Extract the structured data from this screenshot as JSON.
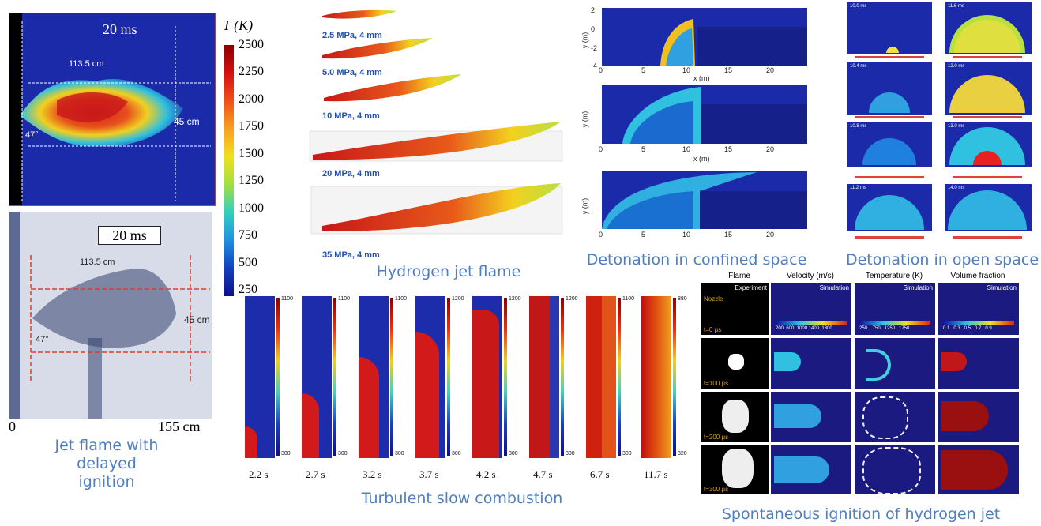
{
  "jet_delayed": {
    "sim_time": "20 ms",
    "sim_dist": "113.5 cm",
    "sim_angle": "47°",
    "sim_width": "45 cm",
    "cb_title": "T (K)",
    "cb_ticks": [
      "2500",
      "2250",
      "2000",
      "1750",
      "1500",
      "1250",
      "1000",
      "750",
      "500",
      "250"
    ],
    "exp_time": "20 ms",
    "exp_dist": "113.5 cm",
    "exp_angle": "47°",
    "exp_width": "45 cm",
    "axis_start": "0",
    "axis_end": "155 cm",
    "caption": "Jet flame with delayed ignition"
  },
  "hydrogen_jet": {
    "labels": [
      "2.5 MPa, 4 mm",
      "5.0 MPa, 4 mm",
      "10 MPa, 4 mm",
      "20 MPa, 4 mm",
      "35 MPa, 4 mm"
    ],
    "caption": "Hydrogen jet flame"
  },
  "confined": {
    "ylabel": "y (m)",
    "xlabel": "x (m)",
    "yticks": [
      "2",
      "0",
      "-2",
      "-4"
    ],
    "xticks": [
      "0",
      "5",
      "10",
      "15",
      "20"
    ],
    "caption": "Detonation in confined space"
  },
  "open_space": {
    "times_left": [
      "10.0 ms",
      "10.4 ms",
      "10.8 ms",
      "11.2 ms"
    ],
    "times_right": [
      "11.6 ms",
      "12.0 ms",
      "13.0 ms",
      "14.0 ms"
    ],
    "caption": "Detonation in open space"
  },
  "slow_combustion": {
    "frames": [
      {
        "time": "2.2 s",
        "ticks": [
          "1100",
          "1000",
          "900",
          "800",
          "700",
          "600",
          "500",
          "400",
          "300"
        ],
        "fill": 0.12
      },
      {
        "time": "2.7 s",
        "ticks": [
          "1100",
          "1000",
          "900",
          "800",
          "700",
          "600",
          "500",
          "400",
          "300"
        ],
        "fill": 0.38
      },
      {
        "time": "3.2 s",
        "ticks": [
          "1100",
          "1000",
          "900",
          "800",
          "700",
          "600",
          "500",
          "400",
          "300"
        ],
        "fill": 0.62
      },
      {
        "time": "3.7 s",
        "ticks": [
          "1200",
          "1100",
          "1000",
          "900",
          "800",
          "700",
          "600",
          "500",
          "400",
          "300"
        ],
        "fill": 0.78
      },
      {
        "time": "4.2 s",
        "ticks": [
          "1200",
          "1100",
          "1000",
          "900",
          "800",
          "700",
          "600",
          "500",
          "400",
          "300"
        ],
        "fill": 0.92
      },
      {
        "time": "4.7 s",
        "ticks": [
          "1200",
          "1100",
          "1000",
          "900",
          "800",
          "700",
          "600",
          "500",
          "400",
          "300"
        ],
        "fill": 0.97
      },
      {
        "time": "6.7 s",
        "ticks": [
          "1100",
          "1000",
          "900",
          "800",
          "700",
          "600",
          "500",
          "400",
          "300"
        ],
        "fill": 1.0
      },
      {
        "time": "11.7 s",
        "ticks": [
          "880",
          "800",
          "720",
          "640",
          "560",
          "480",
          "400",
          "320"
        ],
        "fill": 1.0
      }
    ],
    "caption": "Turbulent slow combustion"
  },
  "spontaneous": {
    "headers": [
      "Flame",
      "Velocity (m/s)",
      "Temperature (K)",
      "Volume fraction"
    ],
    "experiment": "Experiment",
    "simulation": "Simulation",
    "nozzle": "Nozzle",
    "times": [
      "t=0 μs",
      "t=100 μs",
      "t=200 μs",
      "t=300 μs"
    ],
    "vel_ticks": "200  600  1000 1400  1800",
    "temp_ticks": "250    750   1250   1750",
    "vf_ticks": "0.1   0.3   0.5   0.7   0.9",
    "caption": "Spontaneous ignition of hydrogen jet"
  }
}
